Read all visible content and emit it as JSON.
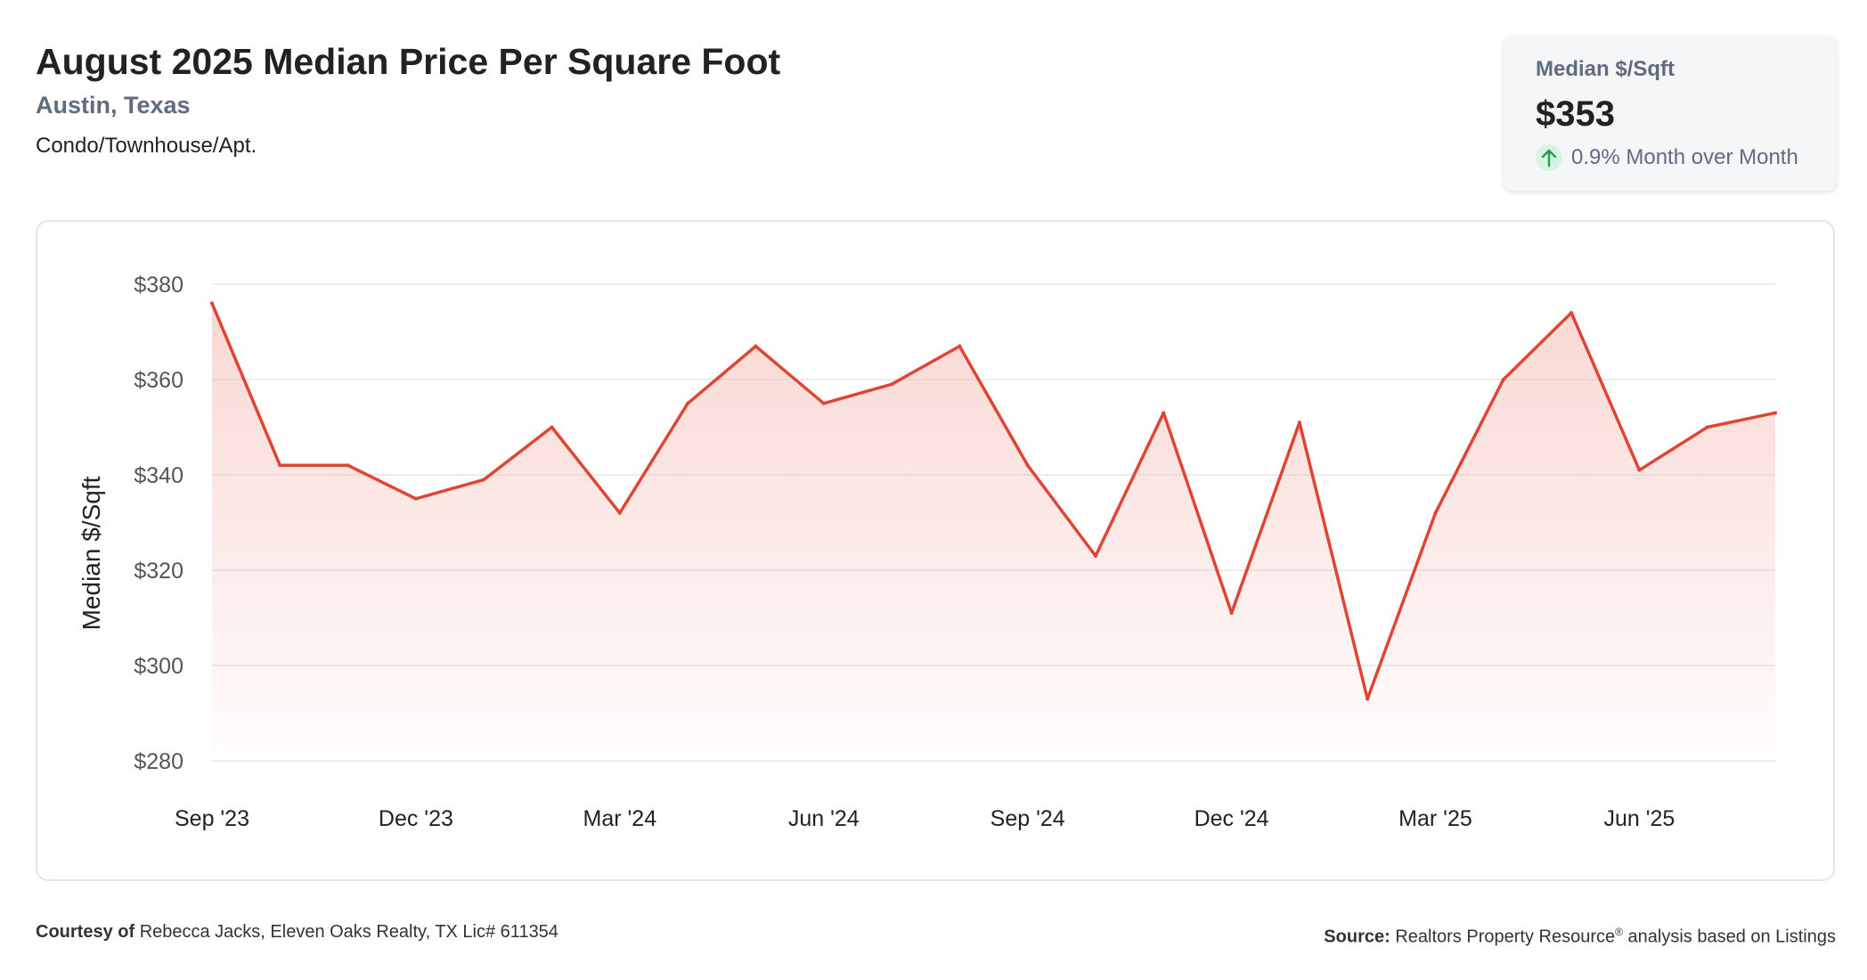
{
  "header": {
    "title": "August 2025 Median Price Per Square Foot",
    "location": "Austin, Texas",
    "property_type": "Condo/Townhouse/Apt."
  },
  "stat_card": {
    "label": "Median $/Sqft",
    "value": "$353",
    "change": "0.9% Month over Month",
    "change_icon": "arrow-up-icon",
    "change_color": "#1f9d55"
  },
  "footer": {
    "courtesy_label": "Courtesy of",
    "courtesy_text": "Rebecca Jacks, Eleven Oaks Realty, TX Lic# 611354",
    "source_label": "Source:",
    "source_text_1": "Realtors Property Resource",
    "source_sup": "®",
    "source_text_2": "analysis based on Listings"
  },
  "chart_data": {
    "type": "area",
    "title": "August 2025 Median Price Per Square Foot",
    "xlabel": "",
    "ylabel": "Median $/Sqft",
    "ylim": [
      280,
      380
    ],
    "y_ticks": [
      380,
      360,
      340,
      320,
      300,
      280
    ],
    "y_tick_labels": [
      "$380",
      "$360",
      "$340",
      "$320",
      "$300",
      "$280"
    ],
    "x_tick_labels": [
      "Sep '23",
      "Dec '23",
      "Mar '24",
      "Jun '24",
      "Sep '24",
      "Dec '24",
      "Mar '25",
      "Jun '25"
    ],
    "x_tick_indices": [
      0,
      3,
      6,
      9,
      12,
      15,
      18,
      21
    ],
    "grid": true,
    "line_color": "#e04533",
    "fill_color": "#f4b8ae",
    "series": [
      {
        "x": [
          "2023-09",
          "2023-10",
          "2023-11",
          "2023-12",
          "2024-01",
          "2024-02",
          "2024-03",
          "2024-04",
          "2024-05",
          "2024-06",
          "2024-07",
          "2024-08",
          "2024-09",
          "2024-10",
          "2024-11",
          "2024-12",
          "2025-01",
          "2025-02",
          "2025-03",
          "2025-04",
          "2025-05",
          "2025-06",
          "2025-07",
          "2025-08"
        ],
        "values": [
          376,
          342,
          342,
          335,
          339,
          350,
          332,
          355,
          367,
          355,
          359,
          367,
          342,
          323,
          353,
          311,
          351,
          293,
          332,
          360,
          374,
          341,
          350,
          353
        ]
      }
    ]
  }
}
